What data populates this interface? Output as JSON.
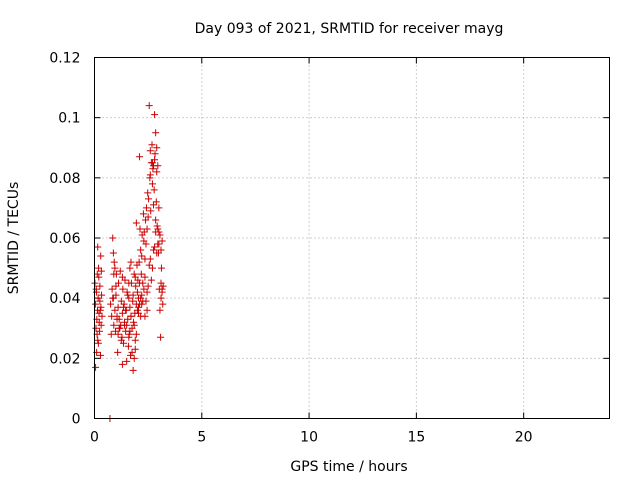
{
  "chart_data": {
    "type": "scatter",
    "title": "Day 093 of 2021, SRMTID for receiver mayg",
    "xlabel": "GPS time / hours",
    "ylabel": "SRMTID / TECUs",
    "xlim": [
      0,
      24
    ],
    "ylim": [
      0,
      0.12
    ],
    "x_ticks": [
      0,
      5,
      10,
      15,
      20
    ],
    "x_tick_labels": [
      "0",
      "5",
      "10",
      "15",
      "20"
    ],
    "y_ticks": [
      0,
      0.02,
      0.04,
      0.06,
      0.08,
      0.1,
      0.12
    ],
    "y_tick_labels": [
      "0",
      "0.02",
      "0.04",
      "0.06",
      "0.08",
      "0.1",
      "0.12"
    ],
    "grid": true,
    "marker": "+",
    "color": "#cc0000",
    "series": [
      {
        "name": "SRMTID",
        "x": [
          0.02,
          0.05,
          0.07,
          0.09,
          0.11,
          0.13,
          0.15,
          0.17,
          0.19,
          0.21,
          0.23,
          0.25,
          0.27,
          0.29,
          0.31,
          0.33,
          0.35,
          0.05,
          0.1,
          0.15,
          0.2,
          0.25,
          0.3,
          0.12,
          0.18,
          0.08,
          0.22,
          0.28,
          0.32,
          0.14,
          0.72,
          0.75,
          0.78,
          0.8,
          0.82,
          0.85,
          0.88,
          0.9,
          0.92,
          0.95,
          0.98,
          1.0,
          1.02,
          1.05,
          1.08,
          1.1,
          1.12,
          1.15,
          1.18,
          1.2,
          1.22,
          1.25,
          1.28,
          1.3,
          1.32,
          1.35,
          1.38,
          1.4,
          1.42,
          1.45,
          1.48,
          1.5,
          1.52,
          1.55,
          1.58,
          1.6,
          1.62,
          1.65,
          1.68,
          1.7,
          1.72,
          1.75,
          1.78,
          1.8,
          1.82,
          1.85,
          1.88,
          1.9,
          1.92,
          1.95,
          1.98,
          2.0,
          2.02,
          2.05,
          2.08,
          2.1,
          2.12,
          2.15,
          2.18,
          2.2,
          2.22,
          2.25,
          2.28,
          2.3,
          2.32,
          2.35,
          2.38,
          2.4,
          2.42,
          2.45,
          2.48,
          2.5,
          2.52,
          2.55,
          2.58,
          2.6,
          2.62,
          2.65,
          2.68,
          2.7,
          2.72,
          2.75,
          2.78,
          2.8,
          2.82,
          2.85,
          2.88,
          2.9,
          2.92,
          2.95,
          2.98,
          3.0,
          3.02,
          3.05,
          3.08,
          3.1,
          3.12,
          3.15,
          3.18,
          3.2,
          0.9,
          1.0,
          1.1,
          1.3,
          1.5,
          1.6,
          1.7,
          1.9,
          2.0,
          2.1,
          2.2,
          2.3,
          2.4,
          2.5,
          2.6,
          2.7,
          2.8,
          2.9,
          3.0,
          3.1,
          1.05,
          1.25,
          1.45,
          1.65,
          1.85,
          2.05,
          2.25,
          2.45,
          2.65,
          2.85,
          0.85,
          1.15,
          1.35,
          1.55,
          1.75,
          1.95,
          2.15,
          2.35,
          2.55,
          2.75,
          2.95,
          3.15,
          2.6,
          2.7,
          2.75,
          2.8,
          2.85,
          2.9,
          2.95,
          3.0,
          1.8,
          1.85,
          1.9,
          1.95,
          2.1,
          2.15,
          2.2,
          1.6,
          1.65,
          1.7,
          0.88,
          0.95,
          1.3,
          1.4,
          2.05,
          2.35,
          2.45,
          3.05,
          3.1,
          3.15
        ],
        "y": [
          0.045,
          0.038,
          0.03,
          0.042,
          0.033,
          0.048,
          0.026,
          0.04,
          0.05,
          0.035,
          0.029,
          0.044,
          0.036,
          0.054,
          0.031,
          0.041,
          0.034,
          0.017,
          0.022,
          0.057,
          0.047,
          0.039,
          0.037,
          0.028,
          0.025,
          0.043,
          0.032,
          0.021,
          0.049,
          0.036,
          0.0,
          0.038,
          0.028,
          0.034,
          0.043,
          0.06,
          0.04,
          0.031,
          0.052,
          0.036,
          0.029,
          0.041,
          0.048,
          0.034,
          0.022,
          0.037,
          0.045,
          0.033,
          0.03,
          0.049,
          0.031,
          0.039,
          0.027,
          0.035,
          0.043,
          0.025,
          0.038,
          0.031,
          0.046,
          0.029,
          0.036,
          0.019,
          0.042,
          0.033,
          0.024,
          0.04,
          0.028,
          0.037,
          0.021,
          0.034,
          0.045,
          0.03,
          0.039,
          0.041,
          0.032,
          0.048,
          0.035,
          0.026,
          0.044,
          0.038,
          0.051,
          0.036,
          0.046,
          0.04,
          0.052,
          0.087,
          0.063,
          0.056,
          0.048,
          0.054,
          0.061,
          0.045,
          0.068,
          0.059,
          0.062,
          0.053,
          0.066,
          0.058,
          0.07,
          0.063,
          0.075,
          0.067,
          0.073,
          0.104,
          0.08,
          0.089,
          0.069,
          0.085,
          0.091,
          0.078,
          0.083,
          0.071,
          0.076,
          0.101,
          0.088,
          0.066,
          0.072,
          0.082,
          0.064,
          0.058,
          0.055,
          0.062,
          0.043,
          0.036,
          0.027,
          0.045,
          0.05,
          0.042,
          0.038,
          0.044,
          0.048,
          0.044,
          0.028,
          0.018,
          0.031,
          0.027,
          0.034,
          0.047,
          0.042,
          0.038,
          0.041,
          0.043,
          0.039,
          0.044,
          0.053,
          0.05,
          0.057,
          0.055,
          0.058,
          0.04,
          0.033,
          0.026,
          0.036,
          0.029,
          0.031,
          0.035,
          0.039,
          0.042,
          0.046,
          0.062,
          0.04,
          0.03,
          0.037,
          0.041,
          0.022,
          0.028,
          0.034,
          0.047,
          0.051,
          0.056,
          0.063,
          0.059,
          0.081,
          0.085,
          0.084,
          0.086,
          0.095,
          0.09,
          0.084,
          0.07,
          0.016,
          0.02,
          0.023,
          0.065,
          0.045,
          0.04,
          0.038,
          0.045,
          0.05,
          0.052,
          0.055,
          0.05,
          0.047,
          0.032,
          0.037,
          0.034,
          0.036,
          0.061,
          0.056,
          0.043
        ]
      }
    ]
  }
}
